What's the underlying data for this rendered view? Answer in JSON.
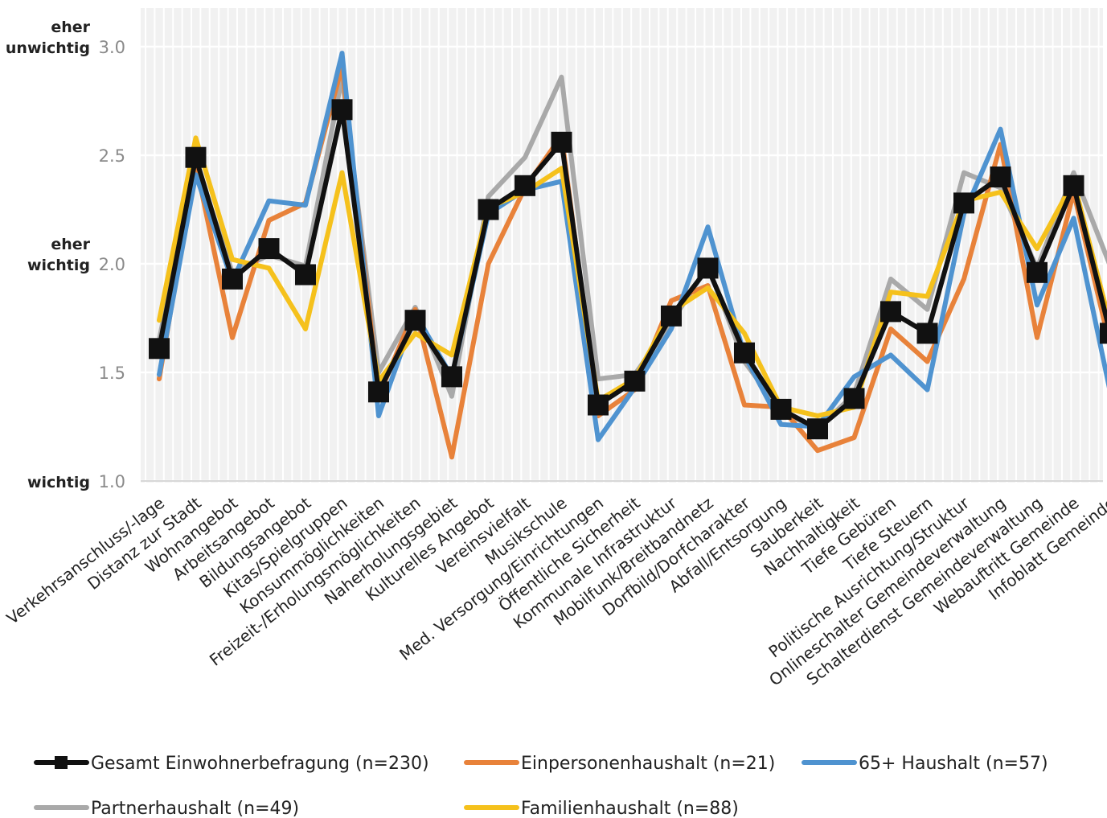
{
  "chart_data": {
    "type": "line",
    "ylim": [
      1.0,
      3.0
    ],
    "yticks": [
      "1.0",
      "1.5",
      "2.0",
      "2.5",
      "3.0"
    ],
    "ytick_values": [
      1.0,
      1.5,
      2.0,
      2.5,
      3.0
    ],
    "y_annotations": [
      {
        "lines": [
          "eher",
          "unwichtig"
        ],
        "value": 3.0
      },
      {
        "lines": [
          "eher",
          "wichtig"
        ],
        "value": 2.0
      },
      {
        "lines": [
          "wichtig"
        ],
        "value": 1.0
      }
    ],
    "grid": true,
    "legend_placement": "bottom",
    "categories": [
      "Verkehrsanschluss/-lage",
      "Distanz zur Stadt",
      "Wohnangebot",
      "Arbeitsangebot",
      "Bildungsangebot",
      "Kitas/Spielgruppen",
      "Konsummöglichkeiten",
      "Freizeit-/Erholungsmöglichkeiten",
      "Naherholungsgebiet",
      "Kulturelles Angebot",
      "Vereinsvielfalt",
      "Musikschule",
      "Med. Versorgung/Einrichtungen",
      "Öffentliche Sicherheit",
      "Kommunale Infrastruktur",
      "Mobilfunk/Breitbandnetz",
      "Dorfbild/Dorfcharakter",
      "Abfall/Entsorgung",
      "Sauberkeit",
      "Nachhaltigkeit",
      "Tiefe Gebüren",
      "Tiefe Steuern",
      "Politische Ausrichtung/Struktur",
      "Onlineschalter Gemeindeverwaltung",
      "Schalterdienst Gemeindeverwaltung",
      "Webauftritt Gemeinde",
      "Infoblatt Gemeinde"
    ],
    "series": [
      {
        "name": "Gesamt Einwohnerbefragung (n=230)",
        "color": "#111111",
        "marker": "square",
        "values": [
          1.61,
          2.49,
          1.93,
          2.07,
          1.95,
          2.71,
          1.41,
          1.74,
          1.48,
          2.25,
          2.36,
          2.56,
          1.35,
          1.46,
          1.76,
          1.98,
          1.59,
          1.33,
          1.24,
          1.38,
          1.78,
          1.68,
          2.28,
          2.4,
          1.96,
          2.36,
          1.68
        ]
      },
      {
        "name": "Einpersonenhaushalt (n=21)",
        "color": "#e8823a",
        "marker": "none",
        "values": [
          1.47,
          2.46,
          1.66,
          2.2,
          2.28,
          2.91,
          1.39,
          1.79,
          1.11,
          2.0,
          2.35,
          2.59,
          1.3,
          1.42,
          1.83,
          1.9,
          1.35,
          1.34,
          1.14,
          1.2,
          1.7,
          1.55,
          1.93,
          2.55,
          1.66,
          2.33,
          1.62
        ]
      },
      {
        "name": "65+ Haushalt (n=57)",
        "color": "#4f93d0",
        "marker": "none",
        "values": [
          1.49,
          2.41,
          1.92,
          2.29,
          2.27,
          2.97,
          1.3,
          1.77,
          1.48,
          2.23,
          2.34,
          2.38,
          1.19,
          1.43,
          1.7,
          2.17,
          1.58,
          1.26,
          1.25,
          1.48,
          1.58,
          1.42,
          2.23,
          2.62,
          1.81,
          2.21,
          1.41
        ]
      },
      {
        "name": "Partnerhaushalt (n=49)",
        "color": "#a9a9a9",
        "marker": "none",
        "values": [
          1.65,
          2.47,
          1.96,
          2.04,
          1.99,
          2.86,
          1.5,
          1.8,
          1.39,
          2.31,
          2.49,
          2.86,
          1.47,
          1.49,
          1.73,
          1.99,
          1.55,
          1.32,
          1.24,
          1.4,
          1.93,
          1.79,
          2.42,
          2.35,
          1.98,
          2.42,
          1.99
        ]
      },
      {
        "name": "Familienhaushalt (n=88)",
        "color": "#f5c11c",
        "marker": "none",
        "values": [
          1.74,
          2.58,
          2.02,
          1.98,
          1.7,
          2.42,
          1.46,
          1.68,
          1.58,
          2.26,
          2.33,
          2.44,
          1.37,
          1.47,
          1.78,
          1.89,
          1.68,
          1.34,
          1.3,
          1.34,
          1.87,
          1.85,
          2.29,
          2.33,
          2.07,
          2.38,
          1.72
        ]
      }
    ],
    "legend_order": [
      0,
      1,
      2,
      3,
      4
    ],
    "draw_order": [
      3,
      1,
      2,
      4,
      0
    ]
  }
}
